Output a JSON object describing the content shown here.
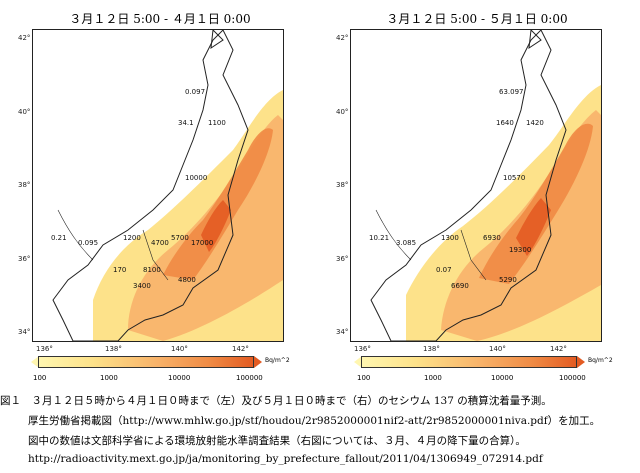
{
  "maps": [
    {
      "title": "３月１２日 5:00 - ４月１日 0:00",
      "values": [
        "0.097",
        "34.1",
        "1100",
        "10000",
        "1200",
        "0.21",
        "0.095",
        "4700",
        "5700",
        "17000",
        "170",
        "8100",
        "3400",
        "4800"
      ]
    },
    {
      "title": "３月１２日 5:00 - ５月１日 0:00",
      "values": [
        "63.097",
        "1640",
        "1420",
        "10570",
        "1300",
        "10.21",
        "3.085",
        "6930",
        "19300",
        "0.07",
        "6690",
        "5290"
      ]
    }
  ],
  "axes": {
    "latitudes": [
      "42°",
      "40°",
      "38°",
      "36°",
      "34°"
    ],
    "longitudes": [
      "136°",
      "138°",
      "140°",
      "142°"
    ]
  },
  "colorbar": {
    "ticks": [
      "100",
      "1000",
      "10000",
      "100000"
    ],
    "unit": "Bq/m^2"
  },
  "colors": {
    "low": "#fff6b0",
    "mid_low": "#fde28a",
    "mid": "#f8b36a",
    "high": "#ef8a44",
    "very_high": "#e35b22",
    "land_outline": "#222222"
  },
  "caption": {
    "line1": "図１　３月１２日５時から４月１日０時まで（左）及び５月１日０時まで（右）のセシウム 137 の積算沈着量予測。",
    "line2": "厚生労働省掲載図（http://www.mhlw.go.jp/stf/houdou/2r9852000001nif2-att/2r9852000001niva.pdf）を加工。",
    "line3": "図中の数値は文部科学省による環境放射能水準調査結果（右図については、３月、４月の降下量の合算）。",
    "line4": "http://radioactivity.mext.go.jp/ja/monitoring_by_prefecture_fallout/2011/04/1306949_072914.pdf"
  }
}
